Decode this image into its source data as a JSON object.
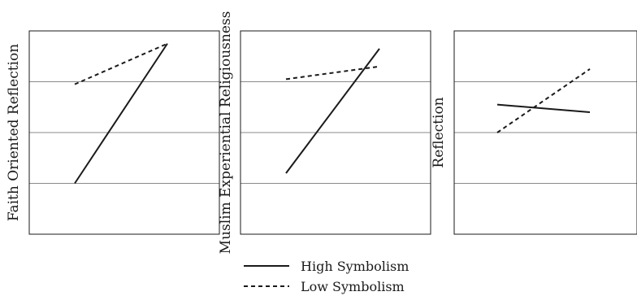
{
  "chart_data": [
    {
      "type": "line",
      "ylabel": "Faith Oriented Reflection",
      "ylim": [
        0,
        4
      ],
      "grid": true,
      "x": [
        0,
        1
      ],
      "series": [
        {
          "name": "High Symbolism",
          "values": [
            1.0,
            3.75
          ]
        },
        {
          "name": "Low Symbolism",
          "values": [
            2.95,
            3.75
          ]
        }
      ]
    },
    {
      "type": "line",
      "ylabel": "Muslim Experiential Religiousness",
      "ylim": [
        0,
        4
      ],
      "grid": true,
      "x": [
        0,
        1
      ],
      "series": [
        {
          "name": "High Symbolism",
          "values": [
            1.2,
            3.65
          ]
        },
        {
          "name": "Low Symbolism",
          "values": [
            3.05,
            3.3
          ]
        }
      ]
    },
    {
      "type": "line",
      "ylabel": "Reflection",
      "ylim": [
        0,
        4
      ],
      "grid": true,
      "x": [
        0,
        1
      ],
      "series": [
        {
          "name": "High Symbolism",
          "values": [
            2.55,
            2.4
          ]
        },
        {
          "name": "Low Symbolism",
          "values": [
            2.0,
            3.25
          ]
        }
      ]
    }
  ],
  "legend": {
    "items": [
      {
        "label": "High Symbolism",
        "style": "solid"
      },
      {
        "label": "Low Symbolism",
        "style": "dashed"
      }
    ]
  },
  "colors": {
    "axis": "#1a1a1a",
    "grid": "#8a8a8a",
    "line": "#1a1a1a"
  }
}
